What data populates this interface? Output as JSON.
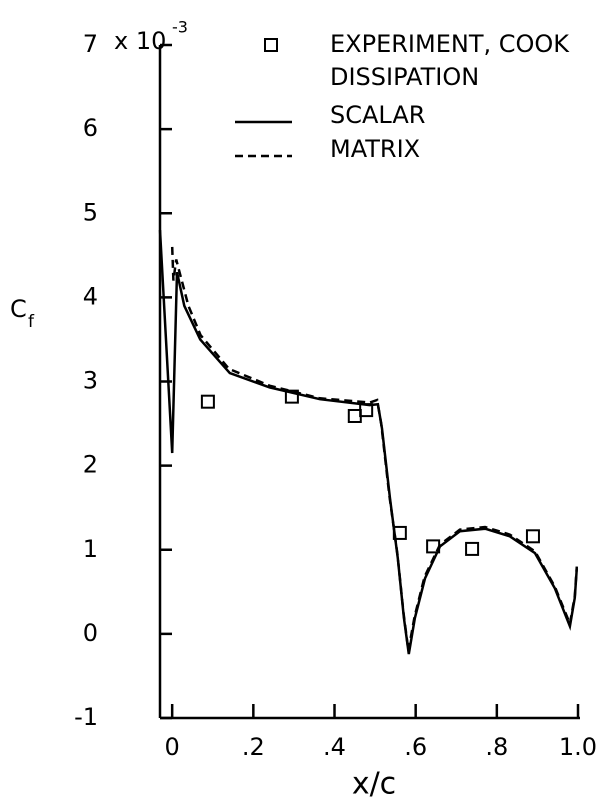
{
  "chart_data": {
    "type": "line",
    "ylabel": "C",
    "ylabel_sub": "f",
    "xlabel": "x/c",
    "y_multiplier": "x 10",
    "y_multiplier_exp": "-3",
    "legend_heading": "DISSIPATION",
    "xlim": [
      -0.03,
      1.0
    ],
    "xticks": [
      0,
      {
        "value": 0.2,
        "label": ".2"
      },
      {
        "value": 0.4,
        "label": ".4"
      },
      {
        "value": 0.6,
        "label": ".6"
      },
      {
        "value": 0.8,
        "label": ".8"
      },
      {
        "value": 1.0,
        "label": "1.0"
      }
    ],
    "ylim": [
      -1,
      7
    ],
    "yticks": [
      -1,
      0,
      1,
      2,
      3,
      4,
      5,
      6,
      7
    ],
    "series": [
      {
        "name": "EXPERIMENT, COOK",
        "type": "scatter",
        "color": "#000000",
        "x": [
          0.088,
          0.295,
          0.45,
          0.478,
          0.561,
          0.643,
          0.739,
          0.889
        ],
        "values": [
          2.76,
          2.82,
          2.59,
          2.66,
          1.2,
          1.04,
          1.01,
          1.16
        ]
      },
      {
        "name": "SCALAR",
        "type": "line",
        "style": "solid",
        "color": "#000000",
        "x": [
          -0.03,
          0.0,
          0.012,
          0.03,
          0.069,
          0.142,
          0.24,
          0.364,
          0.487,
          0.507,
          0.517,
          0.537,
          0.556,
          0.571,
          0.583,
          0.598,
          0.623,
          0.66,
          0.709,
          0.771,
          0.832,
          0.894,
          0.943,
          0.98,
          0.992,
          0.997
        ],
        "values": [
          4.8,
          2.15,
          4.3,
          3.9,
          3.5,
          3.1,
          2.93,
          2.79,
          2.72,
          2.73,
          2.44,
          1.6,
          0.9,
          0.19,
          -0.24,
          0.19,
          0.66,
          1.04,
          1.22,
          1.25,
          1.16,
          0.96,
          0.54,
          0.09,
          0.43,
          0.78
        ]
      },
      {
        "name": "MATRIX",
        "type": "line",
        "style": "dashed",
        "color": "#000000",
        "x": [
          0.0,
          0.003,
          0.01,
          0.04,
          0.07,
          0.14,
          0.24,
          0.364,
          0.487,
          0.505,
          0.515,
          0.535,
          0.555,
          0.57,
          0.582,
          0.597,
          0.622,
          0.66,
          0.709,
          0.771,
          0.832,
          0.894,
          0.943,
          0.98,
          0.992,
          0.997
        ],
        "values": [
          4.6,
          4.2,
          4.45,
          3.9,
          3.55,
          3.15,
          2.95,
          2.8,
          2.75,
          2.78,
          2.5,
          1.65,
          0.95,
          0.25,
          -0.2,
          0.2,
          0.68,
          1.06,
          1.24,
          1.27,
          1.18,
          0.98,
          0.56,
          0.12,
          0.45,
          0.8
        ]
      }
    ]
  }
}
